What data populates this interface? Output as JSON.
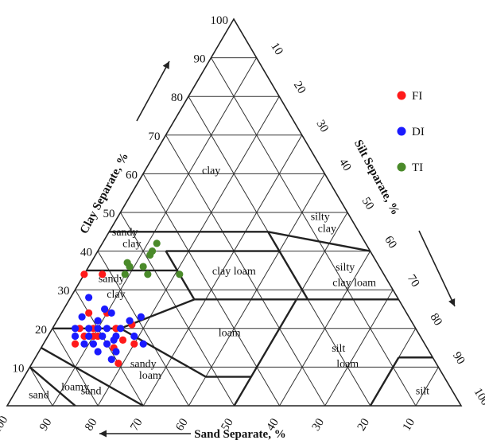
{
  "chart_data": {
    "type": "scatter",
    "subtype": "ternary",
    "axes": {
      "clay": {
        "label": "Clay Separate, %",
        "ticks": [
          10,
          20,
          30,
          40,
          50,
          60,
          70,
          80,
          90,
          100
        ]
      },
      "silt": {
        "label": "Silt Separate, %",
        "ticks": [
          10,
          20,
          30,
          40,
          50,
          60,
          70,
          80,
          90,
          100
        ]
      },
      "sand": {
        "label": "Sand Separate, %",
        "ticks": [
          100,
          90,
          80,
          70,
          60,
          50,
          40,
          30,
          20,
          10
        ]
      }
    },
    "grid": true,
    "legend_position": "top-right",
    "regions": [
      "clay",
      "silty clay",
      "sandy clay",
      "clay loam",
      "silty clay loam",
      "sandy clay loam",
      "loam",
      "silt loam",
      "sandy loam",
      "silt",
      "loamy sand",
      "sand"
    ],
    "series": [
      {
        "name": "FI",
        "color": "#ff1a1a",
        "points": [
          {
            "sand": 66,
            "silt": 0,
            "clay": 34
          },
          {
            "sand": 62,
            "silt": 4,
            "clay": 34
          },
          {
            "sand": 70,
            "silt": 6,
            "clay": 24
          },
          {
            "sand": 66,
            "silt": 10,
            "clay": 24
          },
          {
            "sand": 74,
            "silt": 6,
            "clay": 20
          },
          {
            "sand": 71,
            "silt": 9,
            "clay": 20
          },
          {
            "sand": 66,
            "silt": 14,
            "clay": 20
          },
          {
            "sand": 62,
            "silt": 17,
            "clay": 21
          },
          {
            "sand": 74,
            "silt": 8,
            "clay": 18
          },
          {
            "sand": 71,
            "silt": 11,
            "clay": 18
          },
          {
            "sand": 66,
            "silt": 14,
            "clay": 20
          },
          {
            "sand": 66,
            "silt": 17,
            "clay": 17
          },
          {
            "sand": 72,
            "silt": 10,
            "clay": 18
          },
          {
            "sand": 77,
            "silt": 7,
            "clay": 16
          },
          {
            "sand": 69,
            "silt": 16,
            "clay": 15
          },
          {
            "sand": 64,
            "silt": 20,
            "clay": 16
          },
          {
            "sand": 70,
            "silt": 19,
            "clay": 11
          }
        ]
      },
      {
        "name": "DI",
        "color": "#1a1aff",
        "points": [
          {
            "sand": 68,
            "silt": 4,
            "clay": 28
          },
          {
            "sand": 66,
            "silt": 9,
            "clay": 25
          },
          {
            "sand": 72,
            "silt": 5,
            "clay": 23
          },
          {
            "sand": 65,
            "silt": 11,
            "clay": 24
          },
          {
            "sand": 69,
            "silt": 9,
            "clay": 22
          },
          {
            "sand": 62,
            "silt": 16,
            "clay": 22
          },
          {
            "sand": 59,
            "silt": 18,
            "clay": 23
          },
          {
            "sand": 75,
            "silt": 5,
            "clay": 20
          },
          {
            "sand": 72,
            "silt": 8,
            "clay": 20
          },
          {
            "sand": 70,
            "silt": 10,
            "clay": 20
          },
          {
            "sand": 68,
            "silt": 12,
            "clay": 20
          },
          {
            "sand": 65,
            "silt": 15,
            "clay": 20
          },
          {
            "sand": 76,
            "silt": 6,
            "clay": 18
          },
          {
            "sand": 73,
            "silt": 9,
            "clay": 18
          },
          {
            "sand": 70,
            "silt": 12,
            "clay": 18
          },
          {
            "sand": 67,
            "silt": 15,
            "clay": 18
          },
          {
            "sand": 63,
            "silt": 19,
            "clay": 18
          },
          {
            "sand": 75,
            "silt": 9,
            "clay": 16
          },
          {
            "sand": 73,
            "silt": 11,
            "clay": 16
          },
          {
            "sand": 70,
            "silt": 14,
            "clay": 16
          },
          {
            "sand": 68,
            "silt": 15,
            "clay": 17
          },
          {
            "sand": 62,
            "silt": 22,
            "clay": 16
          },
          {
            "sand": 73,
            "silt": 13,
            "clay": 14
          },
          {
            "sand": 69,
            "silt": 17,
            "clay": 14
          },
          {
            "sand": 71,
            "silt": 17,
            "clay": 12
          }
        ]
      },
      {
        "name": "TI",
        "color": "#4a8a2a",
        "points": [
          {
            "sand": 46,
            "silt": 12,
            "clay": 42
          },
          {
            "sand": 48,
            "silt": 12,
            "clay": 40
          },
          {
            "sand": 49,
            "silt": 12,
            "clay": 39
          },
          {
            "sand": 55,
            "silt": 8,
            "clay": 37
          },
          {
            "sand": 55,
            "silt": 9,
            "clay": 36
          },
          {
            "sand": 52,
            "silt": 12,
            "clay": 36
          },
          {
            "sand": 57,
            "silt": 9,
            "clay": 34
          },
          {
            "sand": 52,
            "silt": 14,
            "clay": 34
          },
          {
            "sand": 45,
            "silt": 21,
            "clay": 34
          }
        ]
      }
    ]
  }
}
